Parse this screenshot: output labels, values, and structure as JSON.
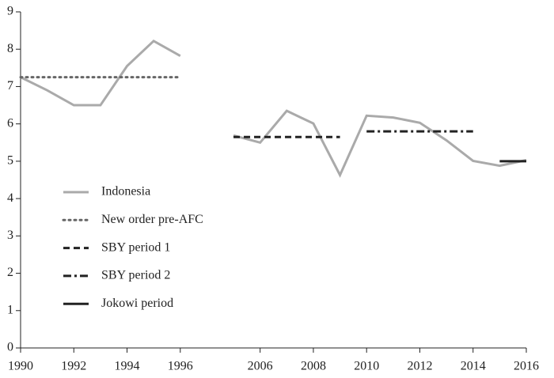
{
  "chart_data": {
    "type": "line",
    "xlim": [
      1990,
      2016
    ],
    "x_break": [
      1996,
      2005
    ],
    "xticks": [
      1990,
      1992,
      1994,
      1996,
      2006,
      2008,
      2010,
      2012,
      2014,
      2016
    ],
    "ylim": [
      0,
      9
    ],
    "yticks": [
      0,
      1,
      2,
      3,
      4,
      5,
      6,
      7,
      8,
      9
    ],
    "legend": "lower left",
    "series": [
      {
        "name": "Indonesia",
        "color": "#aaaaaa",
        "dash": "solid",
        "x": [
          1990,
          1991,
          1992,
          1993,
          1994,
          1995,
          1996,
          2005,
          2006,
          2007,
          2008,
          2009,
          2010,
          2011,
          2012,
          2013,
          2014,
          2015,
          2016
        ],
        "values": [
          7.25,
          6.9,
          6.5,
          6.5,
          7.55,
          8.22,
          7.82,
          5.69,
          5.5,
          6.35,
          6.01,
          4.63,
          6.22,
          6.17,
          6.03,
          5.56,
          5.01,
          4.88,
          5.03
        ]
      },
      {
        "name": "New order pre-AFC",
        "color": "#666666",
        "dash": "dotted",
        "x": [
          1990,
          1996
        ],
        "values": [
          7.25,
          7.25
        ]
      },
      {
        "name": "SBY period 1",
        "color": "#222222",
        "dash": "dashed",
        "x": [
          2005,
          2009
        ],
        "values": [
          5.65,
          5.65
        ]
      },
      {
        "name": "SBY period 2",
        "color": "#222222",
        "dash": "dashdot",
        "x": [
          2010,
          2014
        ],
        "values": [
          5.8,
          5.8
        ]
      },
      {
        "name": "Jokowi period",
        "color": "#222222",
        "dash": "solid",
        "x": [
          2015,
          2016
        ],
        "values": [
          5.0,
          5.0
        ]
      }
    ]
  }
}
